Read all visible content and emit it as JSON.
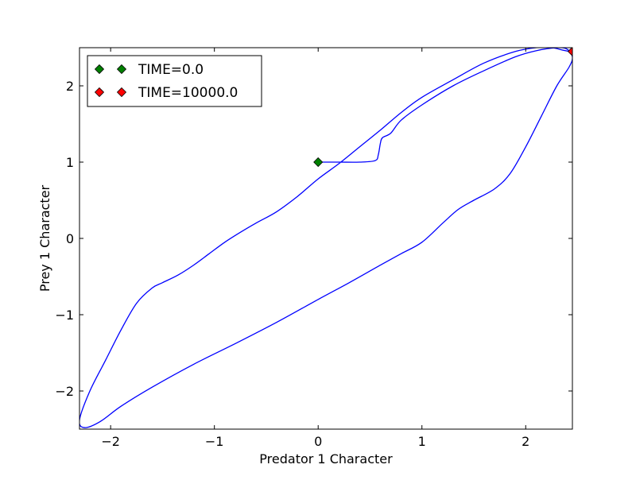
{
  "chart_data": {
    "type": "line",
    "title": "",
    "xlabel": "Predator 1 Character",
    "ylabel": "Prey 1 Character",
    "xlim": [
      -2.3,
      2.45
    ],
    "ylim": [
      -2.5,
      2.5
    ],
    "x_ticks": [
      -2,
      -1,
      0,
      1,
      2
    ],
    "y_ticks": [
      -2,
      -1,
      0,
      1,
      2
    ],
    "x_tick_labels": [
      "−2",
      "−1",
      "0",
      "1",
      "2"
    ],
    "y_tick_labels": [
      "−2",
      "−1",
      "0",
      "1",
      "2"
    ],
    "grid": false,
    "legend_position": "top-left",
    "series": [
      {
        "color": "#0000ff",
        "x": [
          0.0,
          0.2,
          0.4,
          0.55,
          0.58,
          0.6,
          0.62,
          0.7,
          0.8,
          1.0,
          1.3,
          1.6,
          1.9,
          2.1,
          2.3,
          2.4,
          2.45,
          2.42,
          2.3,
          2.15,
          2.0,
          1.85,
          1.7,
          1.5,
          1.35,
          1.2,
          1.0,
          0.8,
          0.6,
          0.3,
          0.0,
          -0.4,
          -0.8,
          -1.2,
          -1.6,
          -1.9,
          -2.1,
          -2.25,
          -2.3,
          -2.2,
          -2.05,
          -1.9,
          -1.75,
          -1.6,
          -1.5,
          -1.35,
          -1.2,
          -1.05,
          -0.9,
          -0.75,
          -0.6,
          -0.4,
          -0.2,
          0.0,
          0.2,
          0.4,
          0.6,
          0.8,
          1.0,
          1.3,
          1.6,
          1.9,
          2.1,
          2.25,
          2.35,
          2.42
        ],
        "y": [
          1.0,
          1.0,
          1.0,
          1.02,
          1.1,
          1.25,
          1.32,
          1.38,
          1.55,
          1.75,
          2.0,
          2.2,
          2.38,
          2.46,
          2.5,
          2.48,
          2.38,
          2.25,
          2.0,
          1.6,
          1.2,
          0.85,
          0.65,
          0.5,
          0.38,
          0.2,
          -0.05,
          -0.2,
          -0.35,
          -0.58,
          -0.8,
          -1.1,
          -1.38,
          -1.65,
          -1.95,
          -2.2,
          -2.4,
          -2.48,
          -2.38,
          -2.0,
          -1.6,
          -1.2,
          -0.85,
          -0.65,
          -0.58,
          -0.48,
          -0.35,
          -0.2,
          -0.05,
          0.08,
          0.2,
          0.35,
          0.55,
          0.78,
          0.98,
          1.2,
          1.42,
          1.65,
          1.85,
          2.08,
          2.3,
          2.45,
          2.5,
          2.5,
          2.47,
          2.45
        ]
      }
    ],
    "markers": [
      {
        "label": "TIME=0.0",
        "x": 0.0,
        "y": 1.0,
        "color": "#008000"
      },
      {
        "label": "TIME=10000.0",
        "x": 2.45,
        "y": 2.45,
        "color": "#ff0000"
      }
    ]
  }
}
